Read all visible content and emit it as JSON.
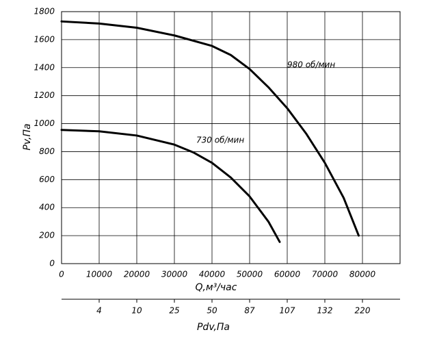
{
  "chart_data": {
    "type": "line",
    "xlabel": "Q,м³/час",
    "ylabel": "Pv,Па",
    "x2label": "Pdv,Па",
    "xlim": [
      0,
      90000
    ],
    "ylim": [
      0,
      1800
    ],
    "xticks": [
      0,
      10000,
      20000,
      30000,
      40000,
      50000,
      60000,
      70000,
      80000
    ],
    "yticks": [
      0,
      200,
      400,
      600,
      800,
      1000,
      1200,
      1400,
      1600,
      1800
    ],
    "x2ticks": [
      {
        "value": 10000,
        "label": "4"
      },
      {
        "value": 20000,
        "label": "10"
      },
      {
        "value": 30000,
        "label": "25"
      },
      {
        "value": 40000,
        "label": "50"
      },
      {
        "value": 50000,
        "label": "87"
      },
      {
        "value": 60000,
        "label": "107"
      },
      {
        "value": 70000,
        "label": "132"
      },
      {
        "value": 80000,
        "label": "220"
      }
    ],
    "grid": true,
    "series": [
      {
        "name": "980 об/мин",
        "color": "#000000",
        "x": [
          0,
          10000,
          20000,
          30000,
          40000,
          45000,
          50000,
          55000,
          60000,
          65000,
          70000,
          75000,
          79000
        ],
        "values": [
          1730,
          1715,
          1685,
          1630,
          1555,
          1490,
          1390,
          1260,
          1110,
          930,
          720,
          470,
          200
        ]
      },
      {
        "name": "730 об/мин",
        "color": "#000000",
        "x": [
          0,
          10000,
          20000,
          30000,
          35000,
          40000,
          45000,
          50000,
          55000,
          58000
        ],
        "values": [
          955,
          945,
          915,
          850,
          795,
          720,
          615,
          480,
          300,
          155
        ]
      }
    ]
  }
}
